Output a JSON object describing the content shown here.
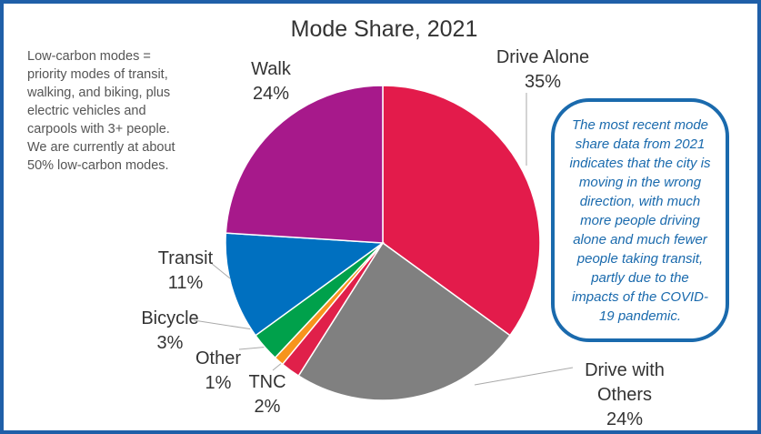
{
  "chart_data": {
    "type": "pie",
    "title": "Mode Share, 2021",
    "categories": [
      "Drive Alone",
      "Drive with Others",
      "TNC",
      "Other",
      "Bicycle",
      "Transit",
      "Walk"
    ],
    "values": [
      35,
      24,
      2,
      1,
      3,
      11,
      24
    ],
    "value_labels": [
      "35%",
      "24%",
      "2%",
      "1%",
      "3%",
      "11%",
      "24%"
    ],
    "colors": [
      "#e31b4b",
      "#808080",
      "#e0204a",
      "#f7941d",
      "#00a14b",
      "#0070c0",
      "#a7198b"
    ],
    "note": "Low-carbon modes = priority modes of transit, walking, and biking, plus electric vehicles and carpools with 3+ people. We are currently at about 50% low-carbon modes.",
    "callout": "The most recent mode share data from 2021 indicates that the city is moving in the wrong direction, with much more people driving alone and much fewer people taking transit, partly due to the impacts of the COVID-19 pandemic."
  }
}
